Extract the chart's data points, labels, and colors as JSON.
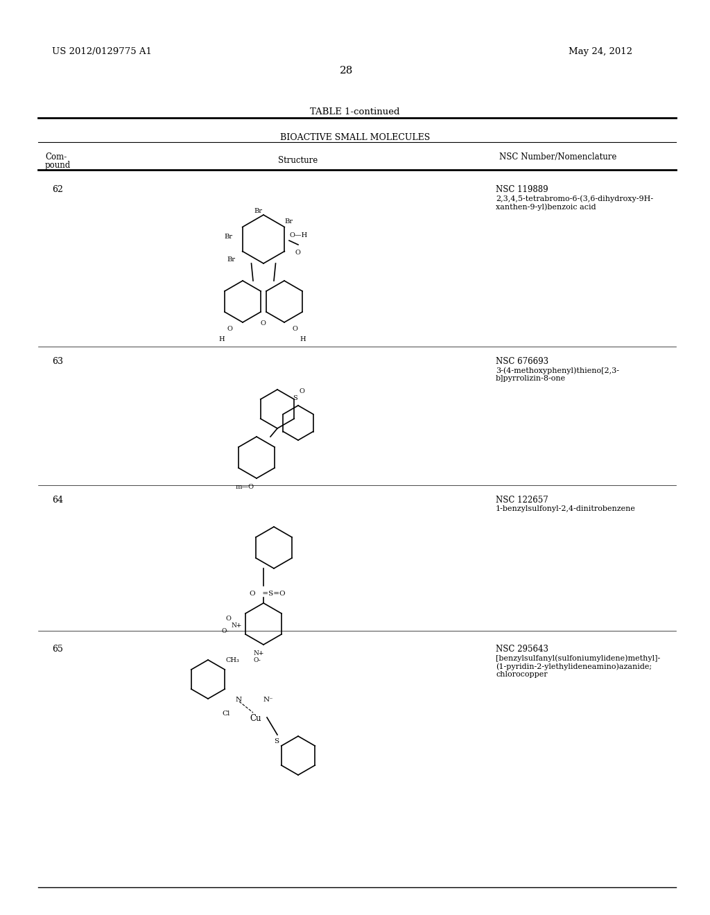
{
  "patent_number": "US 2012/0129775 A1",
  "date": "May 24, 2012",
  "page_number": "28",
  "table_title": "TABLE 1-continued",
  "table_subtitle": "BIOACTIVE SMALL MOLECULES",
  "col_headers": [
    "Com-\npound",
    "Structure",
    "NSC Number/Nomenclature"
  ],
  "compounds": [
    {
      "number": "62",
      "nsc": "NSC 119889",
      "name": "2,3,4,5-tetrabromo-6-(3,6-dihydroxy-9H-\nxanthen-9-yl)benzoic acid"
    },
    {
      "number": "63",
      "nsc": "NSC 676693",
      "name": "3-(4-methoxyphenyl)thieno[2,3-\nb]pyrrolizin-8-one"
    },
    {
      "number": "64",
      "nsc": "NSC 122657",
      "name": "1-benzylsulfonyl-2,4-dinitrobenzene"
    },
    {
      "number": "65",
      "nsc": "NSC 295643",
      "name": "[benzylsulfanyl(sulfoniumylidene)methyl]-\n(1-pyridin-2-ylethylideneamino)azanide;\nchlorocopper"
    }
  ],
  "bg_color": "#ffffff",
  "text_color": "#000000",
  "line_color": "#000000"
}
